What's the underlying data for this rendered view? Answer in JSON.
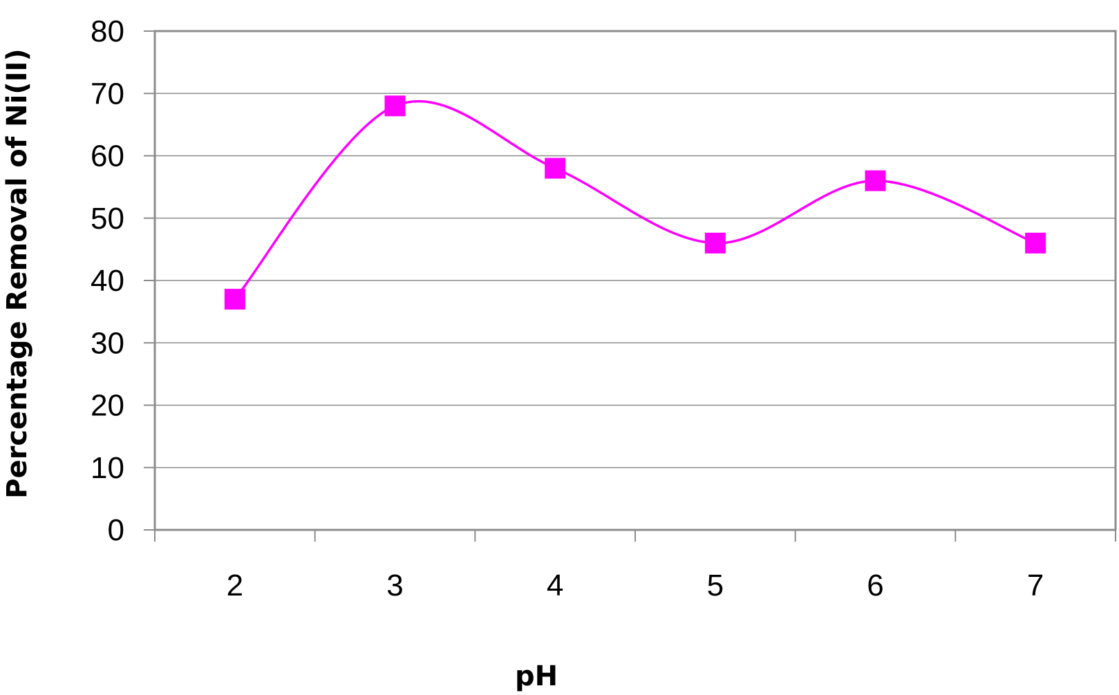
{
  "chart_data": {
    "type": "line",
    "title": "",
    "xlabel": "pH",
    "ylabel": "Percentage   Removal of   Ni(II)",
    "categories": [
      "2",
      "3",
      "4",
      "5",
      "6",
      "7"
    ],
    "series": [
      {
        "values": [
          37,
          68,
          58,
          46,
          56,
          46
        ]
      }
    ],
    "ylim": [
      0,
      80
    ],
    "yticks": [
      "0",
      "10",
      "20",
      "30",
      "40",
      "50",
      "60",
      "70",
      "80"
    ],
    "grid": true,
    "smooth": true,
    "marker": "square",
    "line_color": "#FF00FF",
    "marker_color": "#FF00FF",
    "legend": "none"
  }
}
